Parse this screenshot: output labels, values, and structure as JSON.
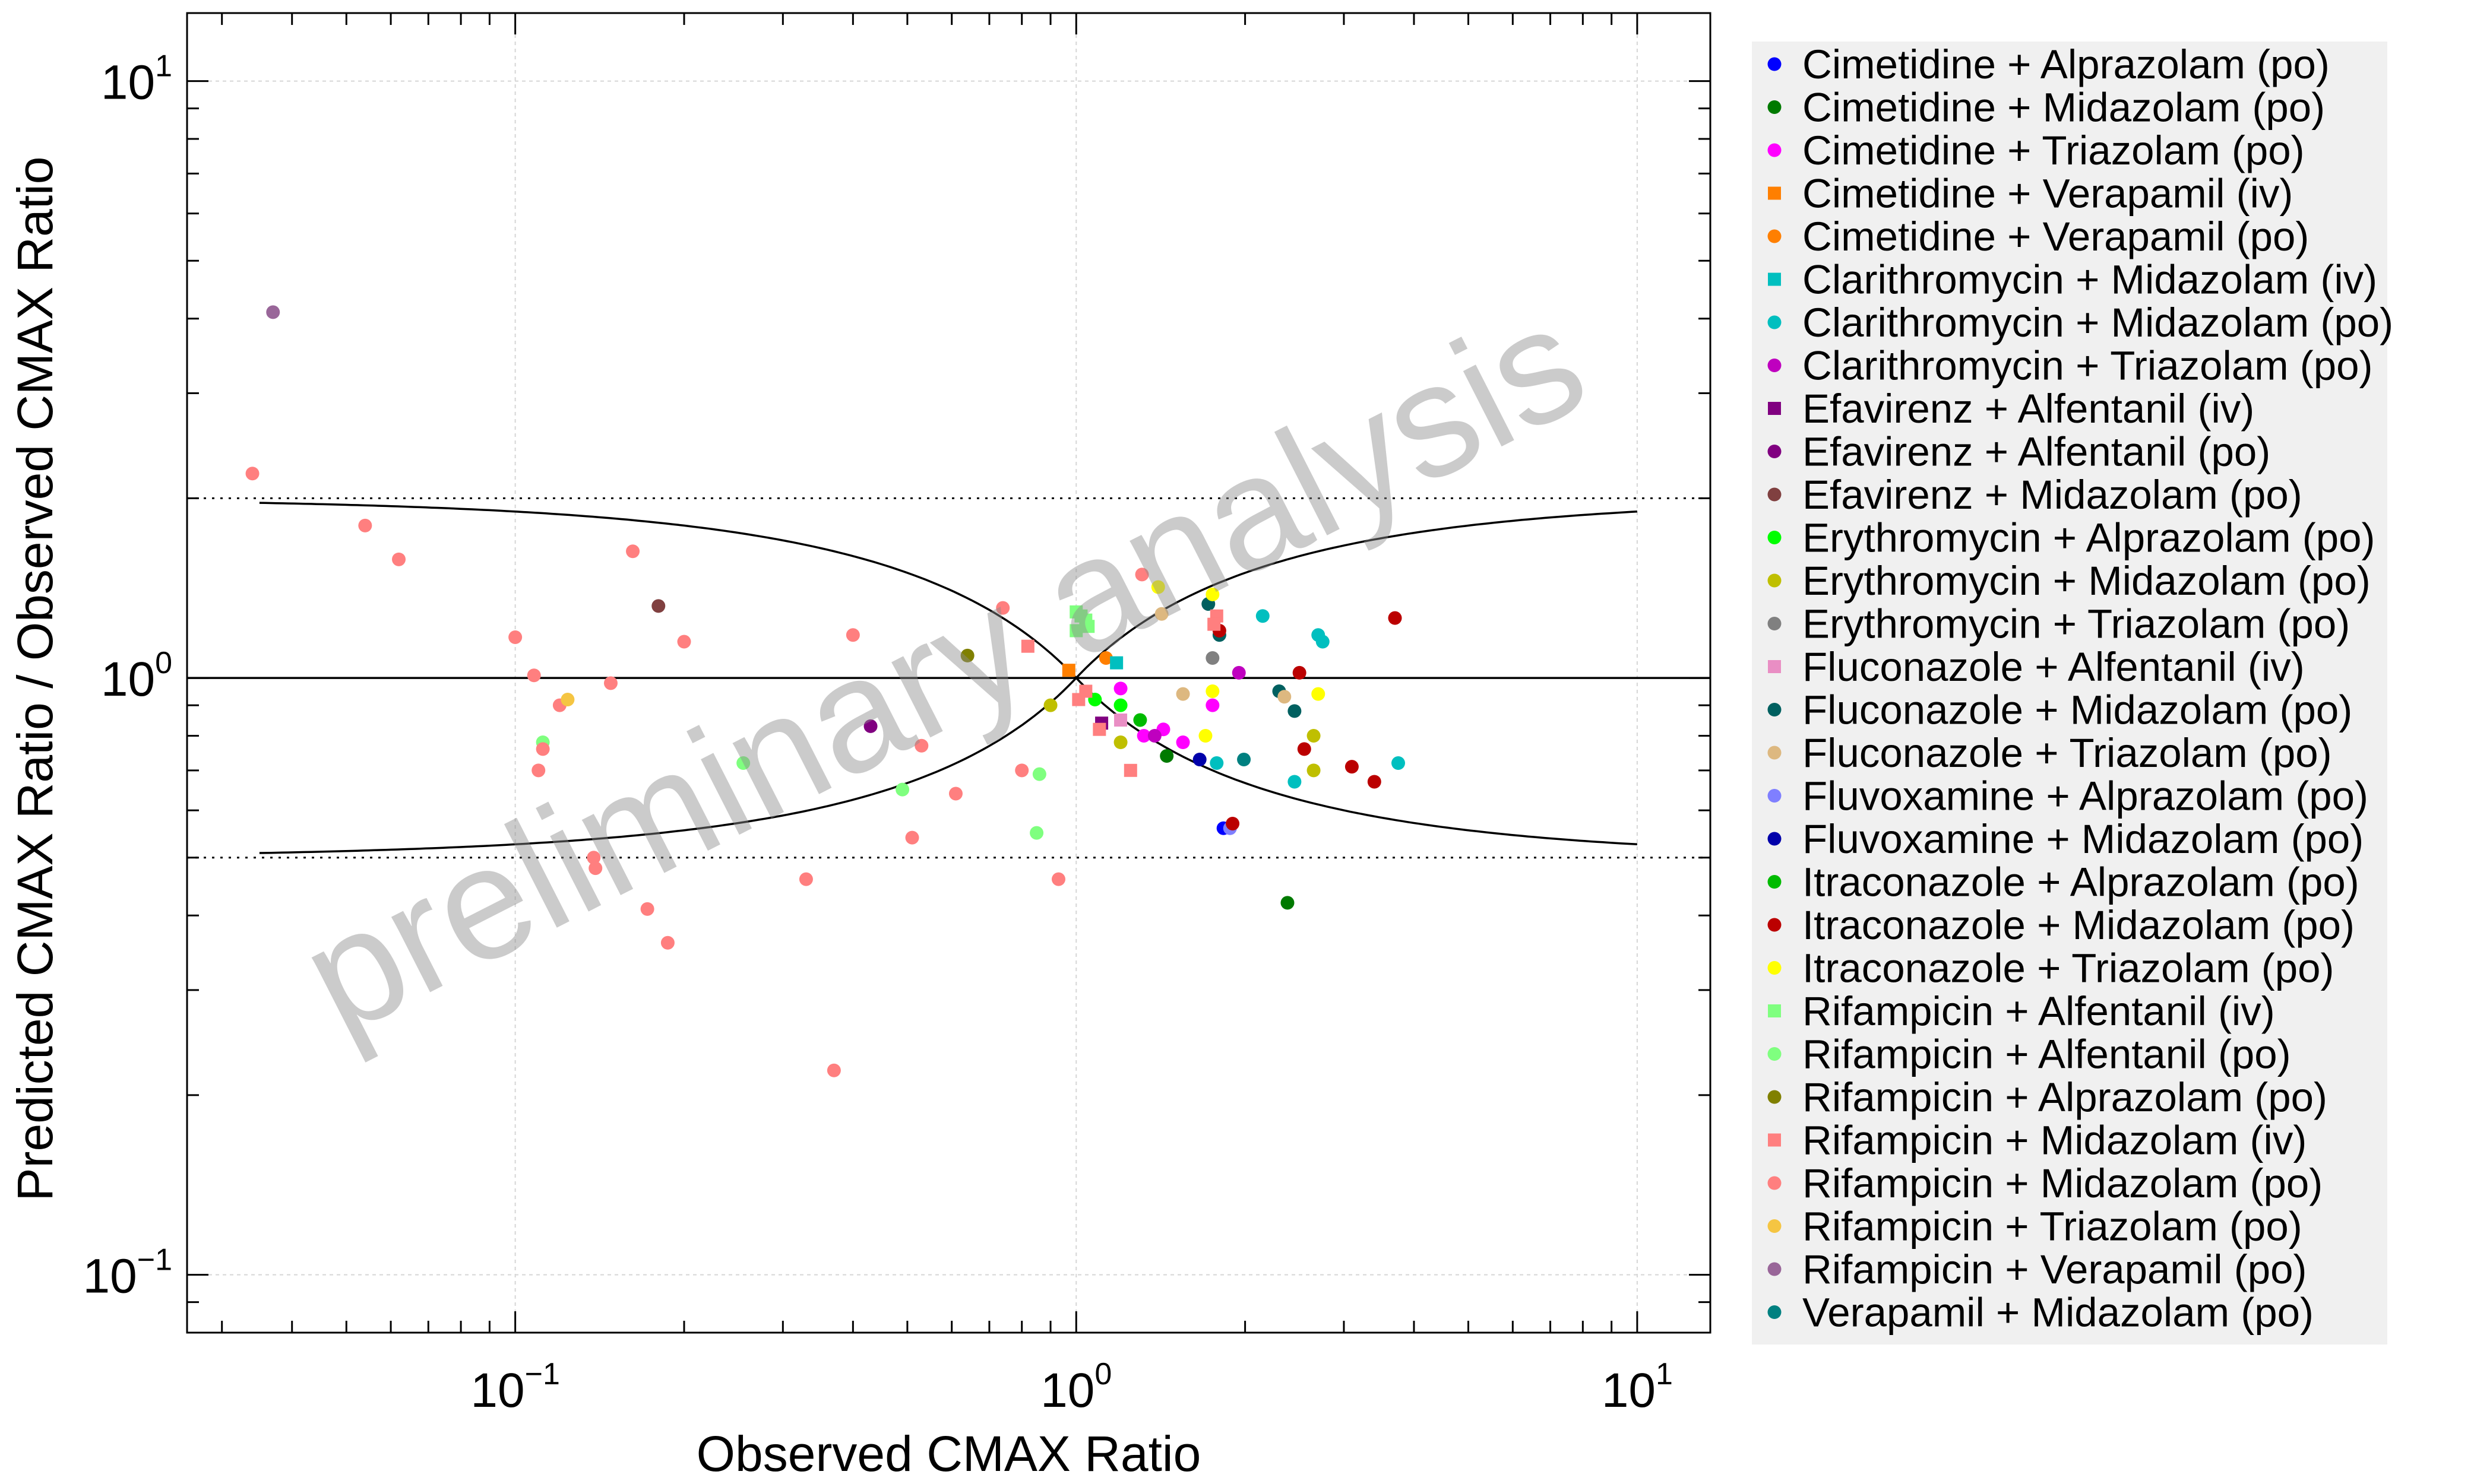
{
  "chart_data": {
    "type": "scatter",
    "xlabel": "Observed CMAX Ratio",
    "ylabel": "Predicted CMAX Ratio / Observed CMAX Ratio",
    "xscale": "log",
    "yscale": "log",
    "xlim": [
      0.026,
      13.5
    ],
    "ylim": [
      0.08,
      13
    ],
    "x_ticks": [
      {
        "base": "10",
        "exp": "−1",
        "value": 0.1
      },
      {
        "base": "10",
        "exp": "0",
        "value": 1
      },
      {
        "base": "10",
        "exp": "1",
        "value": 10
      }
    ],
    "y_ticks": [
      {
        "base": "10",
        "exp": "−1",
        "value": 0.1
      },
      {
        "base": "10",
        "exp": "0",
        "value": 1
      },
      {
        "base": "10",
        "exp": "1",
        "value": 10
      }
    ],
    "grid": true,
    "legend_position": "right",
    "watermark": "preliminary analysis",
    "reference_lines": {
      "identity": 1,
      "dotted_upper": 2,
      "dotted_lower": 0.5
    },
    "series": [
      {
        "name": "Cimetidine + Alprazolam (po)",
        "marker": "circle",
        "color": "#0000ff",
        "points": [
          [
            1.83,
            0.56
          ]
        ]
      },
      {
        "name": "Cimetidine + Midazolam (po)",
        "marker": "circle",
        "color": "#007a00",
        "points": [
          [
            2.38,
            0.42
          ],
          [
            1.45,
            0.74
          ]
        ]
      },
      {
        "name": "Cimetidine + Triazolam (po)",
        "marker": "circle",
        "color": "#ff00ff",
        "points": [
          [
            1.2,
            0.96
          ],
          [
            1.32,
            0.8
          ],
          [
            1.43,
            0.82
          ],
          [
            1.55,
            0.78
          ],
          [
            1.75,
            0.9
          ]
        ]
      },
      {
        "name": "Cimetidine + Verapamil (iv)",
        "marker": "square",
        "color": "#ff7f00",
        "points": [
          [
            0.97,
            1.03
          ]
        ]
      },
      {
        "name": "Cimetidine + Verapamil (po)",
        "marker": "circle",
        "color": "#ff7f00",
        "points": [
          [
            1.13,
            1.08
          ]
        ]
      },
      {
        "name": "Clarithromycin + Midazolam (iv)",
        "marker": "square",
        "color": "#00bfbf",
        "points": [
          [
            1.18,
            1.06
          ]
        ]
      },
      {
        "name": "Clarithromycin + Midazolam (po)",
        "marker": "circle",
        "color": "#00bfbf",
        "points": [
          [
            2.15,
            1.27
          ],
          [
            2.7,
            1.18
          ],
          [
            2.75,
            1.15
          ],
          [
            2.45,
            0.67
          ],
          [
            3.75,
            0.72
          ],
          [
            1.78,
            0.72
          ]
        ]
      },
      {
        "name": "Clarithromycin + Triazolam (po)",
        "marker": "circle",
        "color": "#bf00bf",
        "points": [
          [
            1.95,
            1.02
          ],
          [
            1.38,
            0.8
          ]
        ]
      },
      {
        "name": "Efavirenz + Alfentanil (iv)",
        "marker": "square",
        "color": "#800080",
        "points": [
          [
            1.11,
            0.84
          ]
        ]
      },
      {
        "name": "Efavirenz + Alfentanil (po)",
        "marker": "circle",
        "color": "#800080",
        "points": [
          [
            0.43,
            0.83
          ]
        ]
      },
      {
        "name": "Efavirenz + Midazolam (po)",
        "marker": "circle",
        "color": "#804040",
        "points": [
          [
            0.18,
            1.32
          ]
        ]
      },
      {
        "name": "Erythromycin + Alprazolam (po)",
        "marker": "circle",
        "color": "#00ff00",
        "points": [
          [
            1.08,
            0.92
          ],
          [
            1.2,
            0.9
          ]
        ]
      },
      {
        "name": "Erythromycin + Midazolam (po)",
        "marker": "circle",
        "color": "#bfbf00",
        "points": [
          [
            0.9,
            0.9
          ],
          [
            1.2,
            0.78
          ],
          [
            2.65,
            0.8
          ],
          [
            2.65,
            0.7
          ]
        ]
      },
      {
        "name": "Erythromycin + Triazolam (po)",
        "marker": "circle",
        "color": "#808080",
        "points": [
          [
            1.75,
            1.08
          ]
        ]
      },
      {
        "name": "Fluconazole + Alfentanil (iv)",
        "marker": "square",
        "color": "#e98ec4",
        "points": [
          [
            1.2,
            0.85
          ]
        ]
      },
      {
        "name": "Fluconazole + Midazolam (po)",
        "marker": "circle",
        "color": "#006060",
        "points": [
          [
            1.72,
            1.33
          ],
          [
            1.8,
            1.18
          ],
          [
            2.3,
            0.95
          ],
          [
            2.45,
            0.88
          ]
        ]
      },
      {
        "name": "Fluconazole + Triazolam (po)",
        "marker": "circle",
        "color": "#ddb880",
        "points": [
          [
            1.55,
            0.94
          ],
          [
            1.42,
            1.28
          ],
          [
            2.35,
            0.93
          ]
        ]
      },
      {
        "name": "Fluvoxamine + Alprazolam (po)",
        "marker": "circle",
        "color": "#7f7fff",
        "points": [
          [
            1.88,
            0.56
          ]
        ]
      },
      {
        "name": "Fluvoxamine + Midazolam (po)",
        "marker": "circle",
        "color": "#0000aa",
        "points": [
          [
            1.66,
            0.73
          ]
        ]
      },
      {
        "name": "Itraconazole + Alprazolam (po)",
        "marker": "circle",
        "color": "#00bb00",
        "points": [
          [
            1.3,
            0.85
          ]
        ]
      },
      {
        "name": "Itraconazole + Midazolam (po)",
        "marker": "circle",
        "color": "#bb0000",
        "points": [
          [
            1.9,
            0.57
          ],
          [
            2.5,
            1.02
          ],
          [
            3.1,
            0.71
          ],
          [
            3.7,
            1.26
          ],
          [
            2.55,
            0.76
          ],
          [
            3.4,
            0.67
          ],
          [
            1.8,
            1.2
          ]
        ]
      },
      {
        "name": "Itraconazole + Triazolam (po)",
        "marker": "circle",
        "color": "#ffff00",
        "points": [
          [
            1.4,
            1.42
          ],
          [
            1.75,
            1.38
          ],
          [
            1.75,
            0.95
          ],
          [
            1.7,
            0.8
          ],
          [
            2.7,
            0.94
          ]
        ]
      },
      {
        "name": "Rifampicin + Alfentanil (iv)",
        "marker": "square",
        "color": "#7fff7f",
        "points": [
          [
            1.0,
            1.2
          ],
          [
            1.02,
            1.27
          ],
          [
            1.04,
            1.25
          ],
          [
            1.0,
            1.29
          ],
          [
            1.05,
            1.22
          ]
        ]
      },
      {
        "name": "Rifampicin + Alfentanil (po)",
        "marker": "circle",
        "color": "#7fff7f",
        "points": [
          [
            0.112,
            0.78
          ],
          [
            0.255,
            0.72
          ],
          [
            0.49,
            0.65
          ],
          [
            0.85,
            0.55
          ],
          [
            0.86,
            0.69
          ]
        ]
      },
      {
        "name": "Rifampicin + Alprazolam (po)",
        "marker": "circle",
        "color": "#808000",
        "points": [
          [
            0.64,
            1.09
          ]
        ]
      },
      {
        "name": "Rifampicin + Midazolam (iv)",
        "marker": "square",
        "color": "#ff7f7f",
        "points": [
          [
            0.82,
            1.13
          ],
          [
            1.01,
            0.92
          ],
          [
            1.04,
            0.95
          ],
          [
            1.1,
            0.82
          ],
          [
            1.25,
            0.7
          ],
          [
            1.78,
            1.27
          ],
          [
            1.76,
            1.23
          ]
        ]
      },
      {
        "name": "Rifampicin + Midazolam (po)",
        "marker": "circle",
        "color": "#ff7f7f",
        "points": [
          [
            0.034,
            2.2
          ],
          [
            0.054,
            1.8
          ],
          [
            0.062,
            1.58
          ],
          [
            0.1,
            1.17
          ],
          [
            0.108,
            1.01
          ],
          [
            0.11,
            0.7
          ],
          [
            0.112,
            0.76
          ],
          [
            0.12,
            0.9
          ],
          [
            0.138,
            0.5
          ],
          [
            0.139,
            0.48
          ],
          [
            0.148,
            0.98
          ],
          [
            0.162,
            1.63
          ],
          [
            0.172,
            0.41
          ],
          [
            0.187,
            0.36
          ],
          [
            0.2,
            1.15
          ],
          [
            0.33,
            0.46
          ],
          [
            0.37,
            0.22
          ],
          [
            0.4,
            1.18
          ],
          [
            0.51,
            0.54
          ],
          [
            0.53,
            0.77
          ],
          [
            0.61,
            0.64
          ],
          [
            0.74,
            1.31
          ],
          [
            0.8,
            0.7
          ],
          [
            0.93,
            0.46
          ],
          [
            1.31,
            1.49
          ]
        ]
      },
      {
        "name": "Rifampicin + Triazolam (po)",
        "marker": "circle",
        "color": "#f5c542",
        "points": [
          [
            0.124,
            0.92
          ]
        ]
      },
      {
        "name": "Rifampicin + Verapamil (po)",
        "marker": "circle",
        "color": "#996699",
        "points": [
          [
            0.037,
            4.1
          ]
        ]
      },
      {
        "name": "Verapamil + Midazolam (po)",
        "marker": "circle",
        "color": "#008080",
        "points": [
          [
            1.99,
            0.73
          ]
        ]
      }
    ]
  }
}
